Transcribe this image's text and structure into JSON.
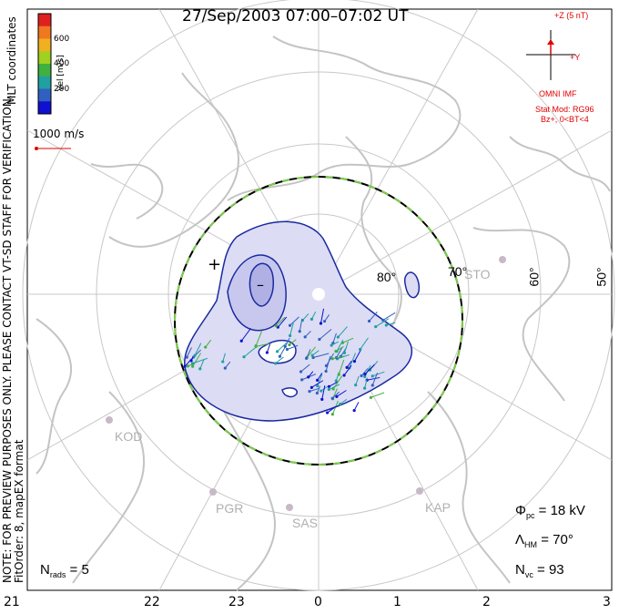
{
  "title": "27/Sep/2003 07:00–07:02 UT",
  "coordinates_label": "MLT coordinates",
  "note_line1": "NOTE: FOR PREVIEW PURPOSES ONLY. PLEASE CONTACT VT-SD STAFF FOR VERIFICATION.",
  "note_line2": "FitOrder: 8, mapEX format",
  "colorbar": {
    "label": "Vel [m/s]",
    "ticks": [
      "600",
      "400",
      "200"
    ],
    "colors": [
      "#e02020",
      "#f07820",
      "#f0b020",
      "#a0d020",
      "#40b040",
      "#20a0a0",
      "#3060c0",
      "#1010d0"
    ]
  },
  "vector_scale": "1000 m/s",
  "imf": {
    "z_label": "+Z (5 nT)",
    "y_label": "+Y",
    "source": "OMNI IMF",
    "model_line1": "Stat Mod: RG96",
    "model_line2": "Bz+, 0<BT<4"
  },
  "mlt_labels": [
    "21",
    "22",
    "23",
    "0",
    "1",
    "2",
    "3"
  ],
  "lat_labels": [
    "80°",
    "70°",
    "60°",
    "50°"
  ],
  "stations": [
    "STO",
    "KOD",
    "PGR",
    "SAS",
    "KAP"
  ],
  "stats": {
    "phi_symbol": "Φ",
    "phi_sub": "pc",
    "phi_value": "= 18 kV",
    "lambda_symbol": "Λ",
    "lambda_sub": "HM",
    "lambda_value": "= 70°",
    "nvc_symbol": "N",
    "nvc_sub": "vc",
    "nvc_value": "= 93",
    "nrads_symbol": "N",
    "nrads_sub": "rads",
    "nrads_value": "= 5"
  },
  "potential_markers": {
    "max": "+",
    "min": "–"
  },
  "colors": {
    "contour": "#1a2aa0",
    "contour_fill": "#dcdcf4",
    "contour_fill_inner": "#b8b8e8",
    "boundary_dash": "#7ccf4a",
    "grid": "#c8c8c8",
    "coast": "#c4c4c4",
    "imf_red": "#e00000"
  }
}
